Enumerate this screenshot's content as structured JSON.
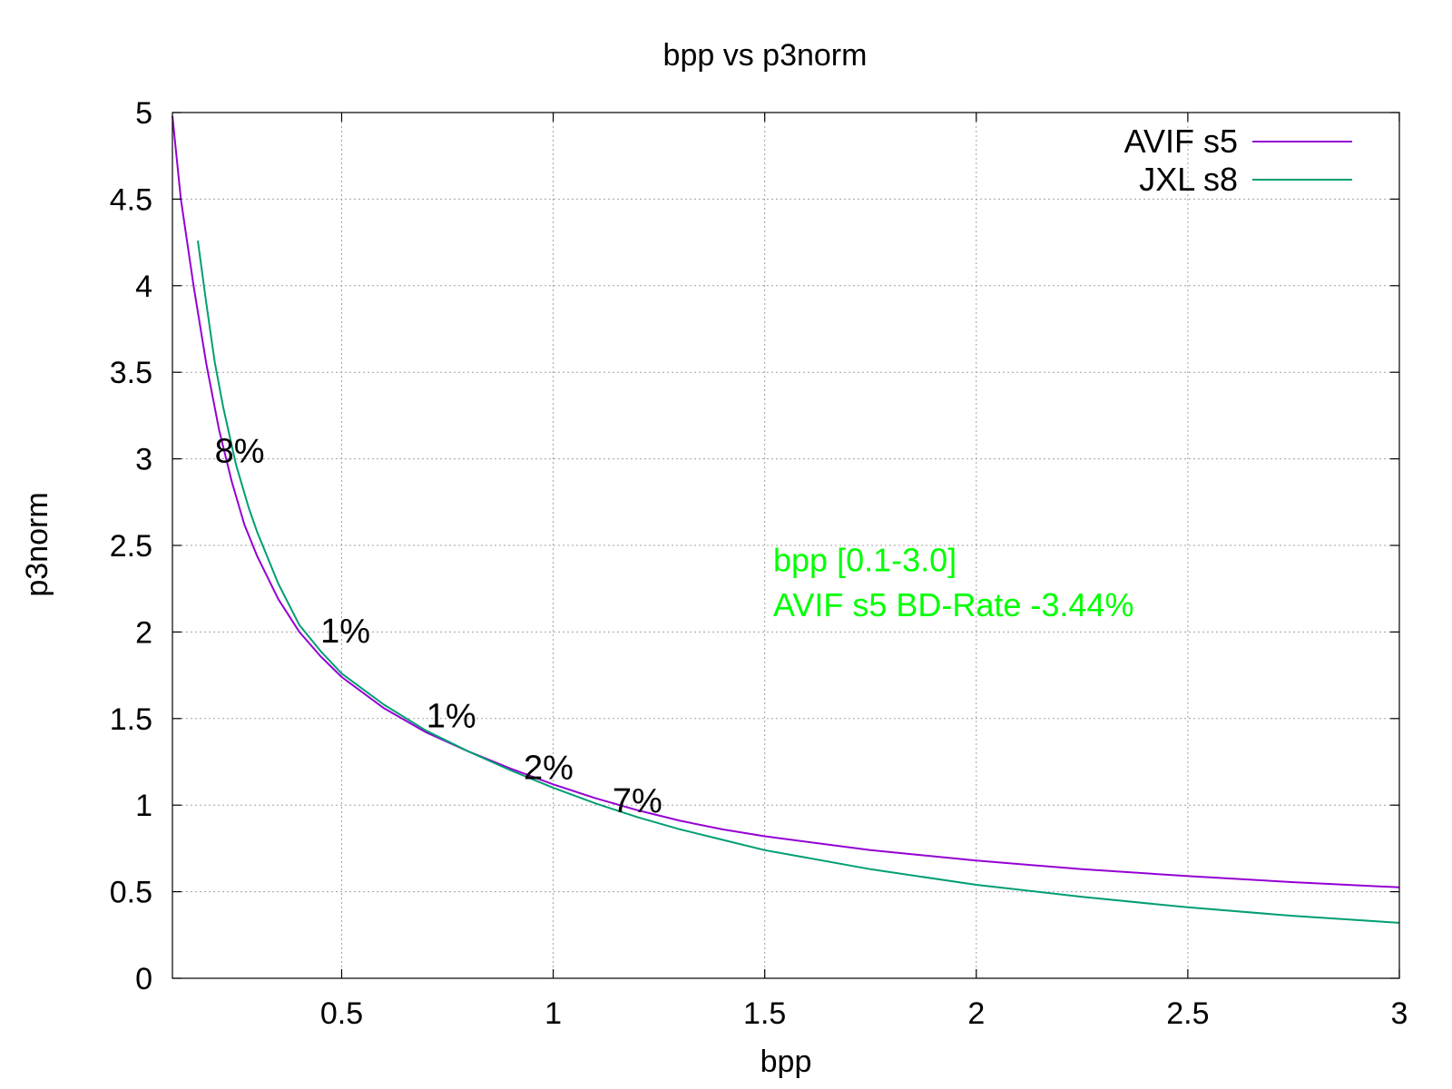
{
  "chart_data": {
    "type": "line",
    "title": "bpp vs p3norm",
    "xlabel": "bpp",
    "ylabel": "p3norm",
    "xlim": [
      0.1,
      3.0
    ],
    "ylim": [
      0,
      5
    ],
    "xticks": [
      0.5,
      1,
      1.5,
      2,
      2.5,
      3
    ],
    "xtick_labels": [
      "0.5",
      "1",
      "1.5",
      "2",
      "2.5",
      "3"
    ],
    "yticks": [
      0,
      0.5,
      1,
      1.5,
      2,
      2.5,
      3,
      3.5,
      4,
      4.5,
      5
    ],
    "ytick_labels": [
      "0",
      "0.5",
      "1",
      "1.5",
      "2",
      "2.5",
      "3",
      "3.5",
      "4",
      "4.5",
      "5"
    ],
    "grid": true,
    "legend_position": "top-right",
    "series": [
      {
        "name": "AVIF s5",
        "color": "#9400d3",
        "x": [
          0.1,
          0.12,
          0.15,
          0.18,
          0.21,
          0.24,
          0.27,
          0.3,
          0.35,
          0.4,
          0.45,
          0.5,
          0.6,
          0.7,
          0.8,
          0.9,
          1.0,
          1.1,
          1.2,
          1.3,
          1.4,
          1.5,
          1.75,
          2.0,
          2.25,
          2.5,
          2.75,
          3.0
        ],
        "y": [
          4.98,
          4.5,
          4.0,
          3.55,
          3.17,
          2.87,
          2.62,
          2.44,
          2.19,
          2.0,
          1.86,
          1.74,
          1.56,
          1.42,
          1.31,
          1.21,
          1.12,
          1.04,
          0.97,
          0.91,
          0.86,
          0.82,
          0.74,
          0.68,
          0.63,
          0.59,
          0.555,
          0.525
        ]
      },
      {
        "name": "JXL s8",
        "color": "#009e73",
        "x": [
          0.16,
          0.18,
          0.2,
          0.22,
          0.25,
          0.28,
          0.3,
          0.35,
          0.4,
          0.45,
          0.5,
          0.6,
          0.7,
          0.8,
          0.9,
          1.0,
          1.1,
          1.2,
          1.3,
          1.4,
          1.5,
          1.75,
          2.0,
          2.25,
          2.5,
          2.75,
          3.0
        ],
        "y": [
          4.26,
          3.9,
          3.56,
          3.3,
          2.97,
          2.72,
          2.58,
          2.28,
          2.04,
          1.89,
          1.76,
          1.58,
          1.43,
          1.31,
          1.2,
          1.1,
          1.01,
          0.93,
          0.86,
          0.8,
          0.74,
          0.63,
          0.54,
          0.47,
          0.41,
          0.36,
          0.32
        ]
      }
    ],
    "annotations": [
      {
        "text": "8%",
        "x": 0.2,
        "y": 2.98
      },
      {
        "text": "1%",
        "x": 0.45,
        "y": 1.94
      },
      {
        "text": "1%",
        "x": 0.7,
        "y": 1.45
      },
      {
        "text": "2%",
        "x": 0.93,
        "y": 1.15
      },
      {
        "text": "7%",
        "x": 1.14,
        "y": 0.96
      }
    ],
    "bd_rate": {
      "line1": "bpp [0.1-3.0]",
      "line2": "AVIF s5 BD-Rate -3.44%",
      "color": "#00ff00",
      "x": 1.52,
      "y1": 2.35,
      "y2": 2.09
    }
  }
}
